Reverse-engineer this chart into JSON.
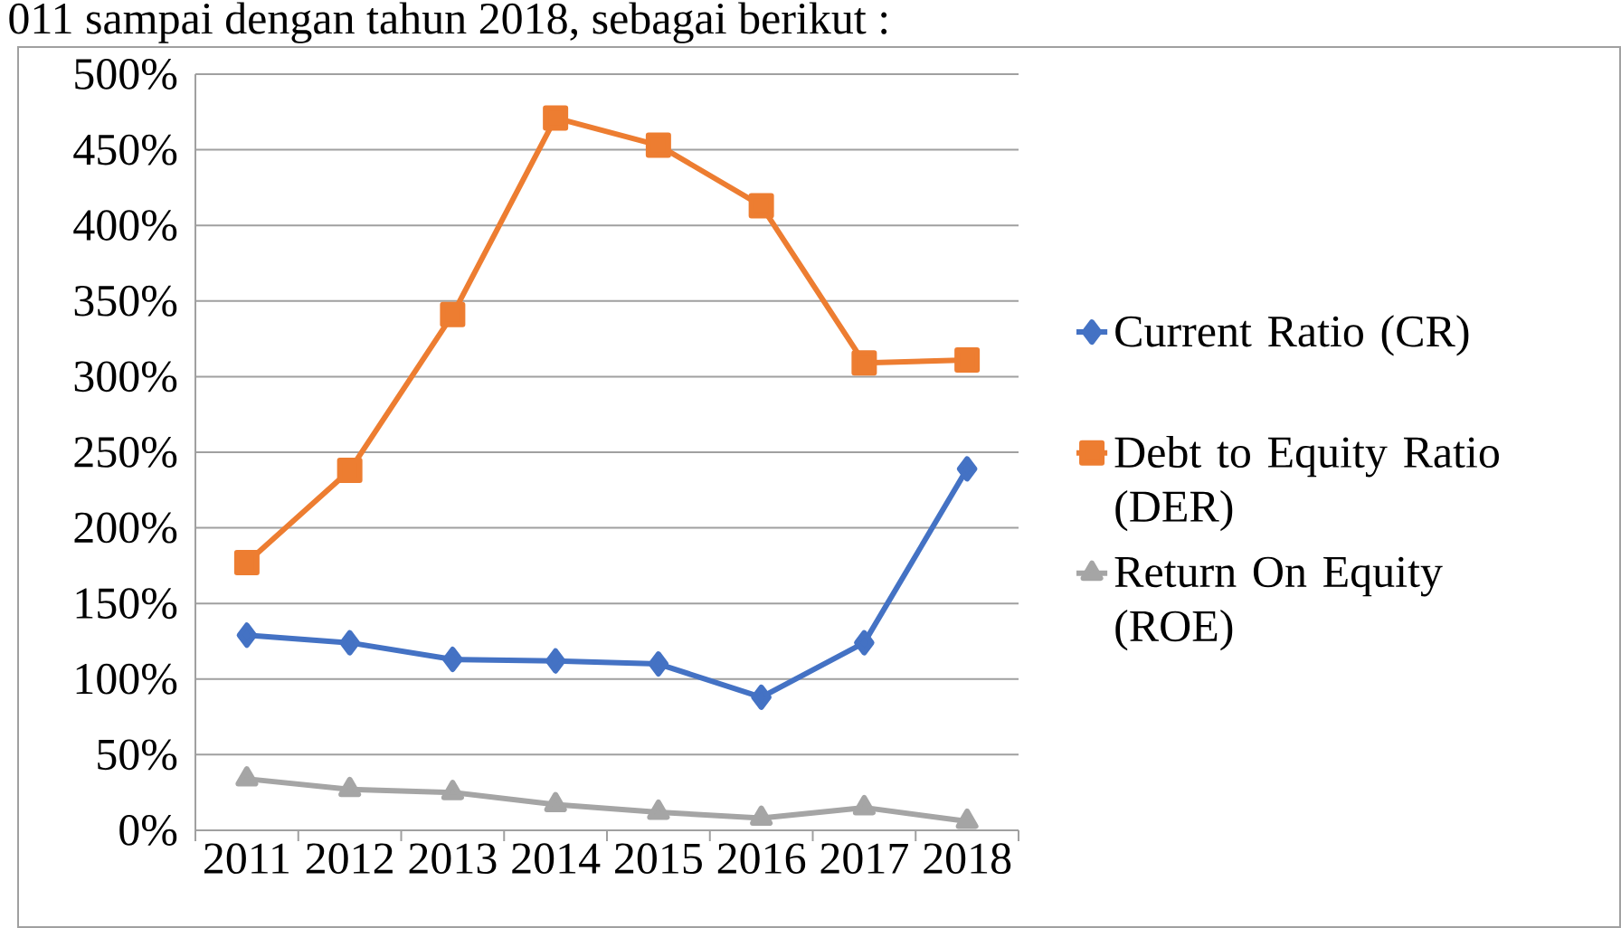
{
  "chart_data": {
    "type": "line",
    "categories": [
      "2011",
      "2012",
      "2013",
      "2014",
      "2015",
      "2016",
      "2017",
      "2018"
    ],
    "series": [
      {
        "name": "Current Ratio (CR)",
        "color": "#4472c4",
        "marker": "diamond",
        "values": [
          129,
          124,
          113,
          112,
          110,
          88,
          124,
          239
        ]
      },
      {
        "name": "Debt to Equity Ratio (DER)",
        "color": "#ed7d31",
        "marker": "square",
        "values": [
          177,
          238,
          341,
          471,
          453,
          413,
          309,
          311
        ]
      },
      {
        "name": "Return On Equity (ROE)",
        "color": "#a5a5a5",
        "marker": "triangle",
        "values": [
          34,
          27,
          25,
          17,
          12,
          8,
          15,
          6
        ]
      }
    ],
    "ylim": [
      0,
      500
    ],
    "yticks": [
      {
        "value": 0,
        "label": "0%"
      },
      {
        "value": 50,
        "label": "50%"
      },
      {
        "value": 100,
        "label": "100%"
      },
      {
        "value": 150,
        "label": "150%"
      },
      {
        "value": 200,
        "label": "200%"
      },
      {
        "value": 250,
        "label": "250%"
      },
      {
        "value": 300,
        "label": "300%"
      },
      {
        "value": 350,
        "label": "350%"
      },
      {
        "value": 400,
        "label": "400%"
      },
      {
        "value": 450,
        "label": "450%"
      },
      {
        "value": 500,
        "label": "500%"
      }
    ],
    "grid": "y",
    "legend": "right",
    "line_style": "solid",
    "annotations": [
      "011 sampai dengan tahun 2018, sebagai berikut :"
    ]
  }
}
